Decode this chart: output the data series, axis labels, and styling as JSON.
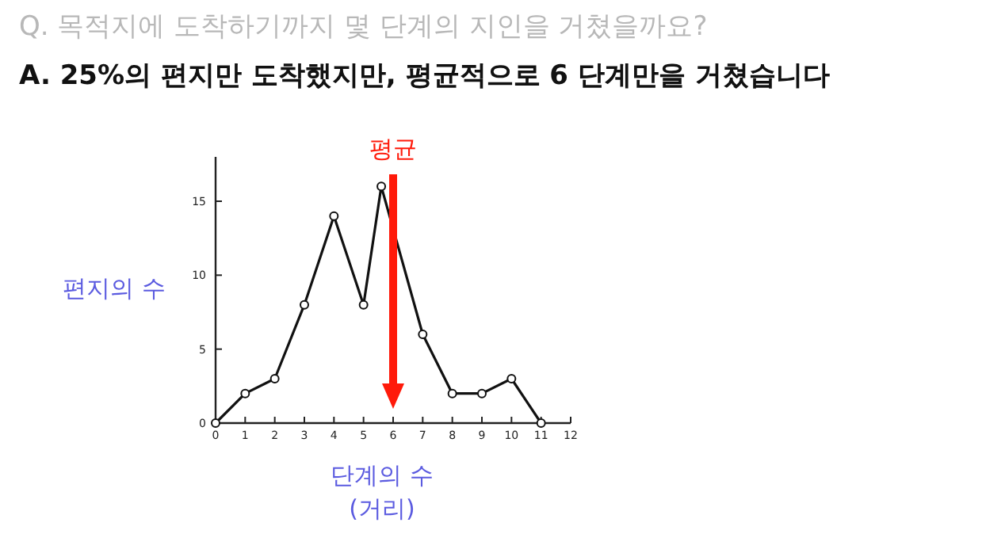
{
  "chart_data": {
    "type": "line",
    "title": "Q. 목적지에 도착하기까지 몇 단계의 지인을 거쳤을까요?",
    "subtitle": "A. 25%의 편지만 도착했지만, 평균적으로 6 단계만을 거쳤습니다",
    "xlabel": "단계의 수\n(거리)",
    "ylabel": "편지의 수",
    "x": [
      0,
      1,
      2,
      3,
      4,
      5,
      5.6,
      7,
      8,
      9,
      10,
      11
    ],
    "series": [
      {
        "color": "#111111",
        "values": [
          0,
          2,
          3,
          8,
          14,
          8,
          16,
          6,
          2,
          2,
          3,
          0
        ]
      }
    ],
    "xlim": [
      0,
      12
    ],
    "xticks": [
      0,
      1,
      2,
      3,
      4,
      5,
      6,
      7,
      8,
      9,
      10,
      11,
      12
    ],
    "ylim": [
      0,
      18
    ],
    "yticks": [
      0,
      5,
      10,
      15
    ],
    "marker": "circle",
    "line_style": "solid",
    "grid": false,
    "ref_lines": [
      {
        "axis": "x",
        "value": 6,
        "label": "평균",
        "color": "#ff1a0a"
      }
    ]
  }
}
